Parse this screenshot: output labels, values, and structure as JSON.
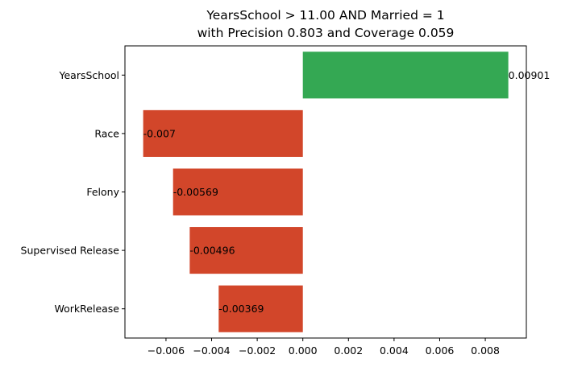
{
  "chart_data": {
    "type": "bar",
    "orientation": "horizontal",
    "title_lines": [
      "YearsSchool > 11.00 AND Married = 1",
      "with Precision 0.803 and Coverage 0.059"
    ],
    "categories": [
      "YearsSchool",
      "Race",
      "Felony",
      "Supervised Release",
      "WorkRelease"
    ],
    "values": [
      0.00901,
      -0.007,
      -0.00569,
      -0.00496,
      -0.00369
    ],
    "value_labels": [
      "0.00901",
      "-0.007",
      "-0.00569",
      "-0.00496",
      "-0.00369"
    ],
    "xlim": [
      -0.0078,
      0.0098
    ],
    "xticks": [
      -0.006,
      -0.004,
      -0.002,
      0.0,
      0.002,
      0.004,
      0.006,
      0.008
    ],
    "xtick_labels": [
      "−0.006",
      "−0.004",
      "−0.002",
      "0.000",
      "0.002",
      "0.004",
      "0.006",
      "0.008"
    ],
    "colors": {
      "positive": "#34a853",
      "negative": "#d2462a"
    },
    "grid": false,
    "xlabel": "",
    "ylabel": ""
  }
}
